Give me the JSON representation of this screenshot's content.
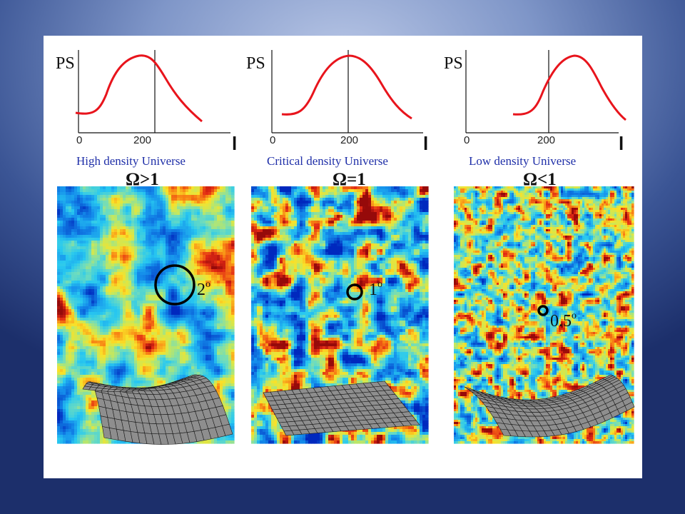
{
  "panels": [
    {
      "ps_label": "PS",
      "tick_0": "0",
      "tick_200": "200",
      "l_label": "l",
      "caption": "High density Universe",
      "omega": "Ω>1",
      "scale": "2",
      "scale_unit": "o"
    },
    {
      "ps_label": "PS",
      "tick_0": "0",
      "tick_200": "200",
      "l_label": "l",
      "caption": "Critical density Universe",
      "omega": "Ω=1",
      "scale": "1",
      "scale_unit": "o"
    },
    {
      "ps_label": "PS",
      "tick_0": "0",
      "tick_200": "200",
      "l_label": "l",
      "caption": "Low density Universe",
      "omega": "Ω<1",
      "scale": "0.5",
      "scale_unit": "o"
    }
  ],
  "colors": {
    "curve": "#e8141c",
    "caption": "#1f2fa8",
    "grid": "#8e8e8e"
  }
}
